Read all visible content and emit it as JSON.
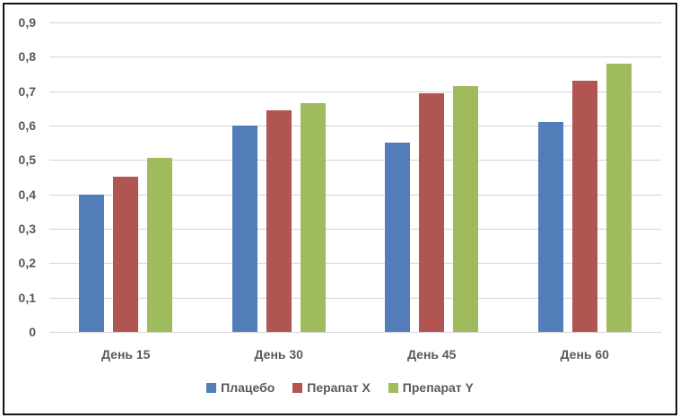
{
  "chart": {
    "background_color": "#FFFFFF",
    "frame_border_color": "#141414",
    "text_color": "#595959",
    "gridline_color": "#D4D4D4"
  },
  "chart_data": {
    "type": "bar",
    "title": "",
    "xlabel": "",
    "ylabel": "",
    "categories": [
      "День 15",
      "День 30",
      "День 45",
      "День 60"
    ],
    "series": [
      {
        "name": "Плацебо",
        "color": "#537DB8",
        "values": [
          0.4,
          0.6,
          0.55,
          0.61
        ]
      },
      {
        "name": "Перапат X",
        "color": "#B05551",
        "values": [
          0.45,
          0.645,
          0.695,
          0.73
        ]
      },
      {
        "name": "Препарат Y",
        "color": "#9FBB5E",
        "values": [
          0.505,
          0.665,
          0.715,
          0.78
        ]
      }
    ],
    "ylim": [
      0,
      0.9
    ],
    "ytick_step": 0.1,
    "ytick_labels_top_to_bottom": [
      "0,9",
      "0,8",
      "0,7",
      "0,6",
      "0,5",
      "0,4",
      "0,3",
      "0,2",
      "0,1",
      "0"
    ],
    "grid": "horizontal",
    "legend_position": "bottom"
  }
}
